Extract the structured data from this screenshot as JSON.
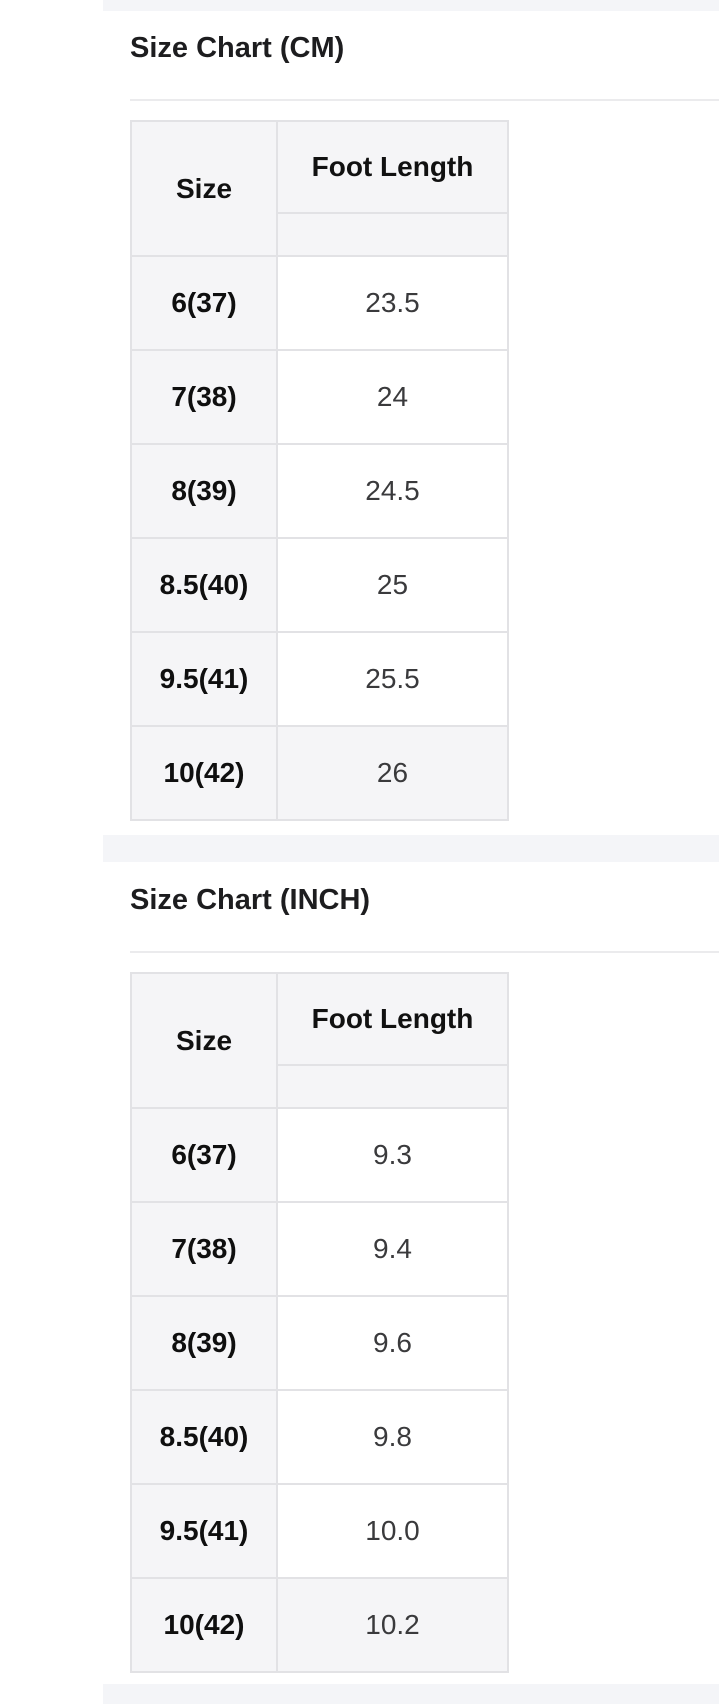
{
  "sections": [
    {
      "title": "Size Chart (CM)",
      "table": {
        "col_size": "Size",
        "col_foot_length": "Foot Length",
        "rows": [
          {
            "size": "6(37)",
            "value": "23.5"
          },
          {
            "size": "7(38)",
            "value": "24"
          },
          {
            "size": "8(39)",
            "value": "24.5"
          },
          {
            "size": "8.5(40)",
            "value": "25"
          },
          {
            "size": "9.5(41)",
            "value": "25.5"
          },
          {
            "size": "10(42)",
            "value": "26"
          }
        ]
      }
    },
    {
      "title": "Size Chart (INCH)",
      "table": {
        "col_size": "Size",
        "col_foot_length": "Foot Length",
        "rows": [
          {
            "size": "6(37)",
            "value": "9.3"
          },
          {
            "size": "7(38)",
            "value": "9.4"
          },
          {
            "size": "8(39)",
            "value": "9.6"
          },
          {
            "size": "8.5(40)",
            "value": "9.8"
          },
          {
            "size": "9.5(41)",
            "value": "10.0"
          },
          {
            "size": "10(42)",
            "value": "10.2"
          }
        ]
      }
    }
  ],
  "colors": {
    "cell_gray": "#f5f5f7",
    "separator_band": "#f4f5f8",
    "table_border": "#e2e2e5",
    "heading_text": "#1d1d1f",
    "value_text": "#3a3a3c"
  }
}
